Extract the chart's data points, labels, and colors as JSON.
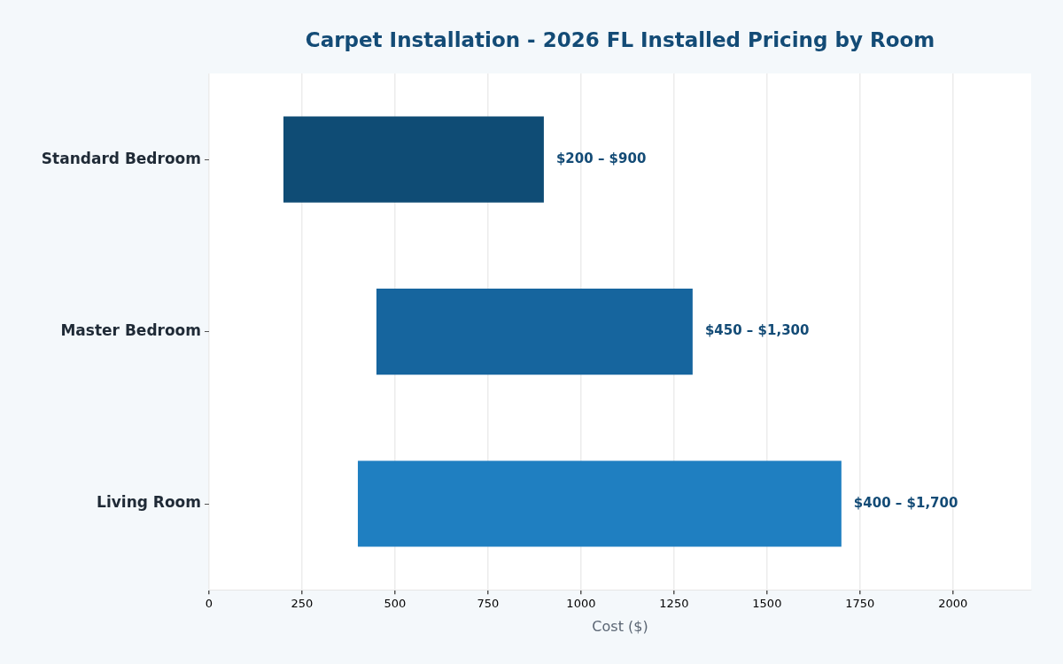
{
  "chart_data": {
    "type": "bar",
    "orientation": "horizontal",
    "title": "Carpet Installation - 2026 FL Installed Pricing by Room",
    "xlabel": "Cost ($)",
    "categories": [
      "Standard Bedroom",
      "Master Bedroom",
      "Living Room"
    ],
    "base": [
      200,
      450,
      400
    ],
    "values": [
      700,
      850,
      1300
    ],
    "colors": [
      "#0f4c75",
      "#16659e",
      "#1f7fc1"
    ],
    "annotations": [
      {
        "text": "$200 – $900",
        "x": 900,
        "y": "Standard Bedroom"
      },
      {
        "text": "$450 – $1,300",
        "x": 1300,
        "y": "Master Bedroom"
      },
      {
        "text": "$400 – $1,700",
        "x": 1700,
        "y": "Living Room"
      }
    ],
    "xlim": [
      0,
      2210
    ],
    "xticks": [
      0,
      250,
      500,
      750,
      1000,
      1250,
      1500,
      1750,
      2000
    ],
    "grid": "x",
    "legend": false
  }
}
